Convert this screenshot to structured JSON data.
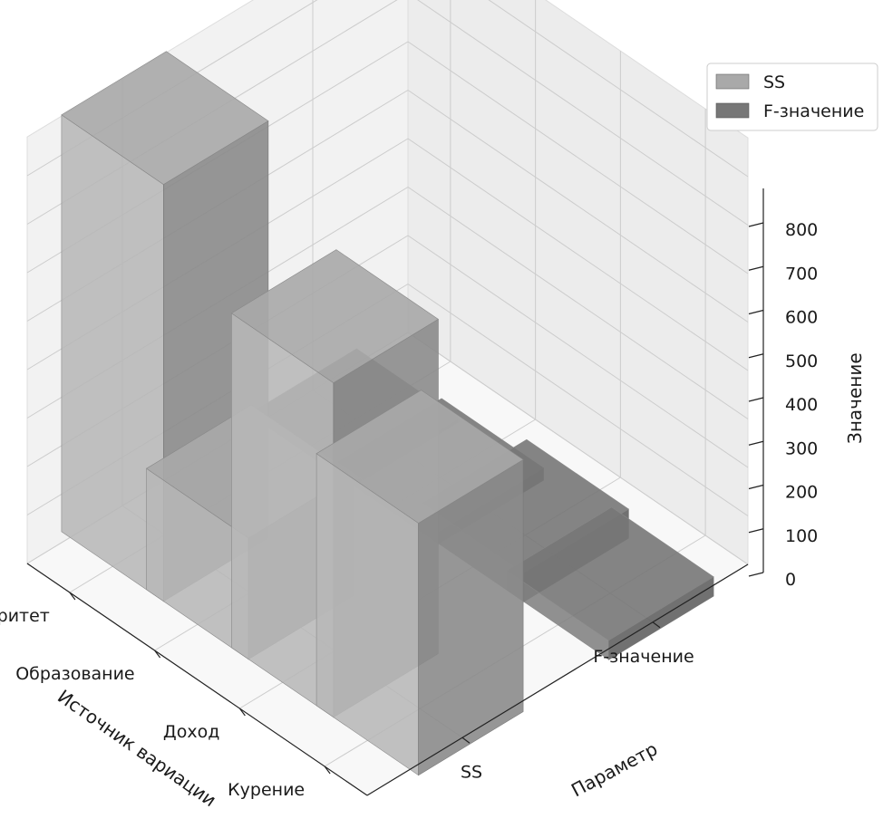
{
  "chart_data": {
    "type": "bar3d",
    "xlabel": "Источник вариации",
    "ylabel": "Параметр",
    "zlabel": "Значение",
    "categories": [
      "Паритет",
      "Образование",
      "Доход",
      "Курение"
    ],
    "parameters": [
      "SS",
      "F-значение"
    ],
    "zticks": [
      "0",
      "100",
      "200",
      "300",
      "400",
      "500",
      "600",
      "700",
      "800"
    ],
    "zlim": [
      0,
      880
    ],
    "grid": true,
    "legend": {
      "position": "top-right",
      "entries": [
        "SS",
        "F-значение"
      ]
    },
    "series": [
      {
        "name": "SS",
        "color": "#a9a9a9",
        "values": [
          860,
          250,
          690,
          520
        ]
      },
      {
        "name": "F-значение",
        "color": "#777777",
        "values": [
          8,
          25,
          60,
          40
        ]
      }
    ]
  }
}
